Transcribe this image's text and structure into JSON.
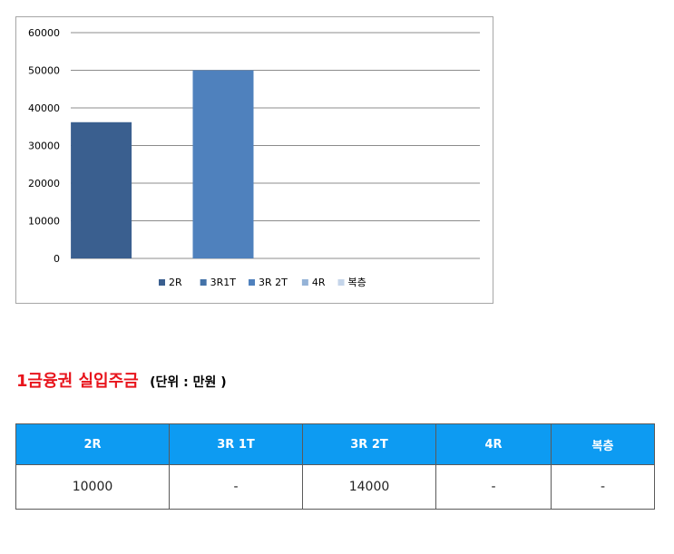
{
  "chart_data": {
    "type": "bar",
    "categories": [
      "2R",
      "3R1T",
      "3R 2T",
      "4R",
      "복층"
    ],
    "values": [
      36200,
      null,
      50000,
      null,
      null
    ],
    "colors": [
      "#3a5f8f",
      "#4372a8",
      "#4f81bd",
      "#95b3d7",
      "#c5d5ea"
    ],
    "ylim": [
      0,
      60000
    ],
    "yticks": [
      0,
      10000,
      20000,
      30000,
      40000,
      50000,
      60000
    ],
    "ytick_labels": [
      "0",
      "10000",
      "20000",
      "30000",
      "40000",
      "50000",
      "60000"
    ],
    "grid": true,
    "legend": {
      "position": "bottom",
      "entries": [
        "2R",
        "3R1T",
        "3R 2T",
        "4R",
        "복층"
      ]
    },
    "title": "",
    "xlabel": "",
    "ylabel": ""
  },
  "section": {
    "title": "1금융권 실입주금",
    "unit": "(단위 : 만원 )"
  },
  "table": {
    "headers": [
      "2R",
      "3R 1T",
      "3R 2T",
      "4R",
      "복층"
    ],
    "rows": [
      [
        "10000",
        "-",
        "14000",
        "-",
        "-"
      ]
    ]
  },
  "colors": {
    "title_red": "#e8141c",
    "table_header_bg": "#0d9bf2",
    "gridline": "#8c8c8c"
  }
}
